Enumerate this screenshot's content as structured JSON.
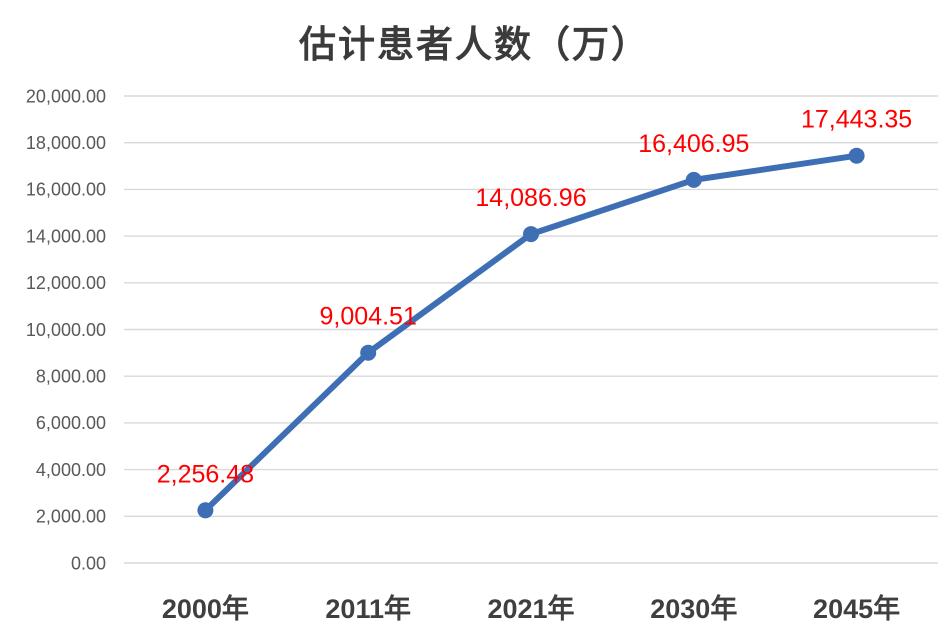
{
  "chart_data": {
    "type": "line",
    "title": "估计患者人数（万）",
    "categories": [
      "2000年",
      "2011年",
      "2021年",
      "2030年",
      "2045年"
    ],
    "values": [
      2256.48,
      9004.51,
      14086.96,
      16406.95,
      17443.35
    ],
    "data_labels": [
      "2,256.48",
      "9,004.51",
      "14,086.96",
      "16,406.95",
      "17,443.35"
    ],
    "y_ticks": [
      "0.00",
      "2,000.00",
      "4,000.00",
      "6,000.00",
      "8,000.00",
      "10,000.00",
      "12,000.00",
      "14,000.00",
      "16,000.00",
      "18,000.00",
      "20,000.00"
    ],
    "ylim": [
      0,
      20000
    ],
    "y_step": 2000,
    "xlabel": "",
    "ylabel": "",
    "grid": "horizontal-only",
    "legend": "none",
    "marker": "circle",
    "colors": {
      "line": "#3e6fb5",
      "marker": "#3e6fb5",
      "data_label": "#fe0000",
      "gridline": "#d9d9d9",
      "y_axis_text": "#595959",
      "x_axis_text": "#3f3f3f",
      "title": "#3b3b3b",
      "background": "#ffffff"
    }
  }
}
